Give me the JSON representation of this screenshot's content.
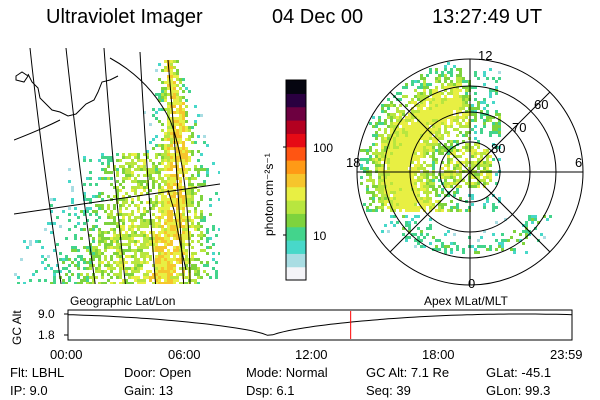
{
  "header": {
    "title": "Ultraviolet Imager",
    "date": "04 Dec 00",
    "time": "13:27:49 UT"
  },
  "left_panel": {
    "label": "Geographic Lat/Lon"
  },
  "right_panel": {
    "label": "Apex MLat/MLT",
    "mlt_labels": {
      "top": "12",
      "left": "18",
      "right": "6",
      "bottom": "0"
    },
    "lat_labels": [
      "60",
      "70",
      "80"
    ]
  },
  "colorbar": {
    "unit_label": "photon cm⁻²s⁻¹",
    "ticks": [
      "100",
      "10"
    ],
    "scale": "log",
    "range": [
      3,
      500
    ],
    "colors": [
      "#f4f4f8",
      "#a9dde3",
      "#48d8c9",
      "#43d48c",
      "#7ed33d",
      "#b8e63f",
      "#e8ef43",
      "#f6c52c",
      "#ff9a16",
      "#ff5512",
      "#e60a15",
      "#b30020",
      "#6d0040",
      "#2a0040",
      "#050510"
    ]
  },
  "timeline": {
    "axis_label": "GC Alt",
    "y_ticks": [
      "9.0",
      "1.8"
    ],
    "x_ticks": [
      "00:00",
      "06:00",
      "12:00",
      "18:00",
      "23:59"
    ],
    "current_time_hours": 13.46,
    "marker_color": "#ff0000"
  },
  "footer": {
    "row1": [
      {
        "key": "Flt:",
        "value": "LBHL"
      },
      {
        "key": "Door:",
        "value": "Open"
      },
      {
        "key": "Mode:",
        "value": "Normal"
      },
      {
        "key": "GC Alt:",
        "value": "7.1 Re"
      },
      {
        "key": "GLat:",
        "value": "-45.1"
      }
    ],
    "row2": [
      {
        "key": "IP:",
        "value": "9.0"
      },
      {
        "key": "Gain:",
        "value": "13"
      },
      {
        "key": "Dsp:",
        "value": "6.1"
      },
      {
        "key": "Seq:",
        "value": "39"
      },
      {
        "key": "GLon:",
        "value": "99.3"
      }
    ]
  }
}
